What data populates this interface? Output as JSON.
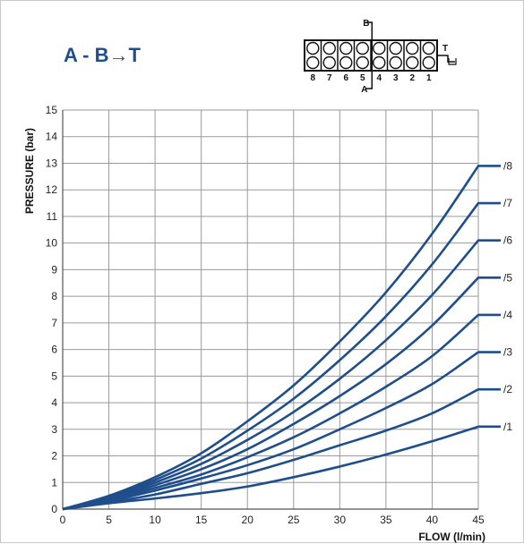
{
  "chart_data": {
    "type": "line",
    "title": "A - B→T",
    "xlabel": "FLOW (l/min)",
    "ylabel": "PRESSURE (bar)",
    "xlim": [
      0,
      45
    ],
    "ylim": [
      0,
      15
    ],
    "x_ticks": [
      0,
      5,
      10,
      15,
      20,
      25,
      30,
      35,
      40,
      45
    ],
    "y_ticks": [
      0,
      1,
      2,
      3,
      4,
      5,
      6,
      7,
      8,
      9,
      10,
      11,
      12,
      13,
      14,
      15
    ],
    "grid": true,
    "line_color": "#1f4e8c",
    "x": [
      0,
      5,
      10,
      15,
      20,
      25,
      30,
      35,
      40,
      45
    ],
    "series": [
      {
        "name": "/1",
        "values": [
          0,
          0.22,
          0.4,
          0.6,
          0.85,
          1.2,
          1.6,
          2.05,
          2.55,
          3.1
        ]
      },
      {
        "name": "/2",
        "values": [
          0,
          0.25,
          0.55,
          0.95,
          1.35,
          1.85,
          2.4,
          2.95,
          3.6,
          4.5
        ]
      },
      {
        "name": "/3",
        "values": [
          0,
          0.3,
          0.7,
          1.15,
          1.65,
          2.25,
          3.0,
          3.8,
          4.7,
          5.9
        ]
      },
      {
        "name": "/4",
        "values": [
          0,
          0.35,
          0.8,
          1.3,
          1.95,
          2.7,
          3.6,
          4.6,
          5.75,
          7.3
        ]
      },
      {
        "name": "/5",
        "values": [
          0,
          0.38,
          0.9,
          1.5,
          2.25,
          3.2,
          4.25,
          5.45,
          6.9,
          8.7
        ]
      },
      {
        "name": "/6",
        "values": [
          0,
          0.42,
          1.0,
          1.7,
          2.6,
          3.65,
          4.9,
          6.35,
          8.05,
          10.1
        ]
      },
      {
        "name": "/7",
        "values": [
          0,
          0.46,
          1.1,
          1.9,
          2.95,
          4.15,
          5.6,
          7.25,
          9.2,
          11.5
        ]
      },
      {
        "name": "/8",
        "values": [
          0,
          0.5,
          1.2,
          2.1,
          3.3,
          4.65,
          6.3,
          8.15,
          10.35,
          12.9
        ]
      }
    ]
  },
  "diagram": {
    "port_numbers": [
      "8",
      "7",
      "6",
      "5",
      "4",
      "3",
      "2",
      "1"
    ],
    "label_b": "B",
    "label_a": "A",
    "label_t": "T"
  }
}
